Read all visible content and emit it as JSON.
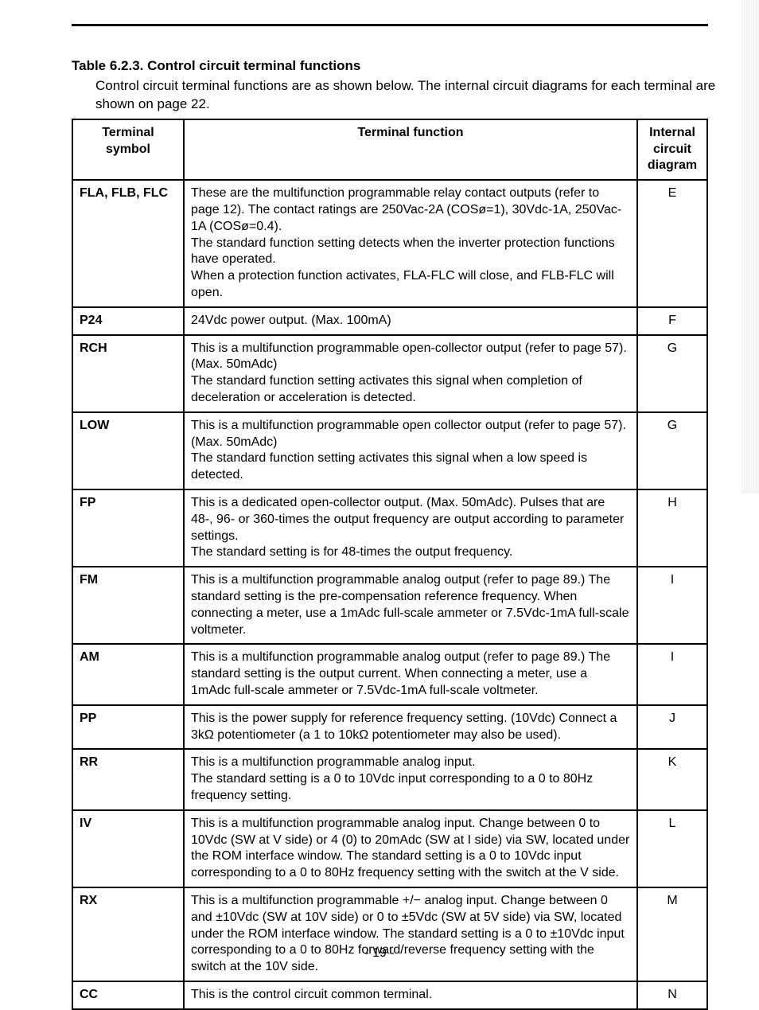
{
  "title": "Table 6.2.3.  Control circuit terminal functions",
  "intro": "Control circuit terminal functions are as shown below. The internal circuit diagrams for each terminal are shown on page 22.",
  "page_number": "- 19 -",
  "table": {
    "headers": {
      "symbol": "Terminal symbol",
      "function": "Terminal function",
      "diagram": "Internal circuit diagram"
    },
    "rows": [
      {
        "symbol": "FLA, FLB, FLC",
        "function": "These are the multifunction programmable relay contact outputs (refer to page 12). The contact ratings are 250Vac-2A (COSø=1), 30Vdc-1A, 250Vac-1A (COSø=0.4).\nThe standard function setting detects when the inverter protection functions have operated.\nWhen a protection function activates, FLA-FLC will close, and FLB-FLC will open.",
        "diagram": "E"
      },
      {
        "symbol": "P24",
        "function": "24Vdc power output. (Max. 100mA)",
        "diagram": "F"
      },
      {
        "symbol": "RCH",
        "function": "This is a multifunction programmable open-collector output (refer to page 57). (Max. 50mAdc)\nThe standard function setting activates this signal when completion of deceleration or acceleration is detected.",
        "diagram": "G"
      },
      {
        "symbol": "LOW",
        "function": "This is a multifunction programmable open collector output (refer to page 57). (Max. 50mAdc)\nThe standard function setting activates this signal when a low speed is detected.",
        "diagram": "G"
      },
      {
        "symbol": "FP",
        "function": "This is a dedicated open-collector output. (Max. 50mAdc). Pulses that are 48-, 96- or 360-times the output frequency are output according to parameter settings.\nThe standard setting is for 48-times the output frequency.",
        "diagram": "H"
      },
      {
        "symbol": "FM",
        "function": "This is a multifunction programmable analog output (refer to page 89.) The standard setting is the pre-compensation reference frequency. When connecting a meter, use a 1mAdc full-scale ammeter or 7.5Vdc-1mA full-scale voltmeter.",
        "diagram": "I"
      },
      {
        "symbol": "AM",
        "function": "This is a multifunction programmable analog output (refer to page 89.) The standard setting is the output current. When connecting a meter, use a 1mAdc full-scale ammeter or 7.5Vdc-1mA full-scale voltmeter.",
        "diagram": "I"
      },
      {
        "symbol": "PP",
        "function": "This is the power supply for reference frequency setting. (10Vdc) Connect a 3kΩ potentiometer (a 1 to 10kΩ potentiometer may also be used).",
        "diagram": "J"
      },
      {
        "symbol": "RR",
        "function": "This is a multifunction programmable analog input.\nThe standard setting is a 0 to 10Vdc input corresponding to a 0 to 80Hz frequency setting.",
        "diagram": "K"
      },
      {
        "symbol": "IV",
        "function": "This is a multifunction programmable analog input. Change between 0 to 10Vdc (SW at V side) or 4 (0) to 20mAdc (SW at I side) via SW, located under the ROM interface window. The standard setting is a 0 to 10Vdc input corresponding to a 0 to 80Hz frequency setting with the switch at the V side.",
        "diagram": "L"
      },
      {
        "symbol": "RX",
        "function": "This is a multifunction programmable +/− analog input. Change between 0 and ±10Vdc (SW at 10V side) or 0 to ±5Vdc (SW at 5V side) via SW, located under the ROM interface window. The standard setting is a 0 to ±10Vdc input corresponding to a 0 to 80Hz forward/reverse frequency setting with the switch at the 10V side.",
        "diagram": "M"
      },
      {
        "symbol": "CC",
        "function": "This is the control circuit common terminal.",
        "diagram": "N"
      }
    ]
  }
}
